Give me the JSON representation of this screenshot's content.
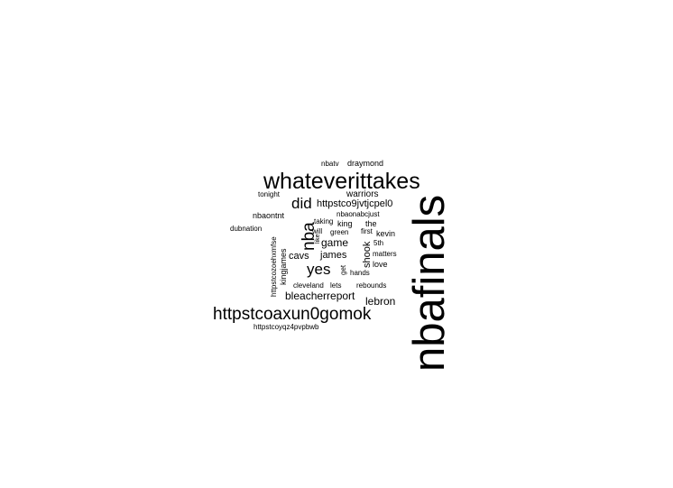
{
  "words": [
    "nbafinals",
    "whateverittakes",
    "httpstcoaxun0gomok",
    "nba",
    "did",
    "yes",
    "httpstco9jvtjcpel0",
    "bleacherreport",
    "lebron",
    "warriors",
    "game",
    "cavs",
    "james",
    "shook",
    "nbatv",
    "draymond",
    "tonight",
    "nbaontnt",
    "nbaonabcjust",
    "dubnation",
    "taking",
    "king",
    "the",
    "will",
    "green",
    "first",
    "kevin",
    "httpstcozoehxmfse",
    "kingjames",
    "5th",
    "matters",
    "love",
    "get",
    "hands",
    "cleveland",
    "lets",
    "rebounds",
    "httpstcoyqz4pvpbwb",
    "like"
  ]
}
